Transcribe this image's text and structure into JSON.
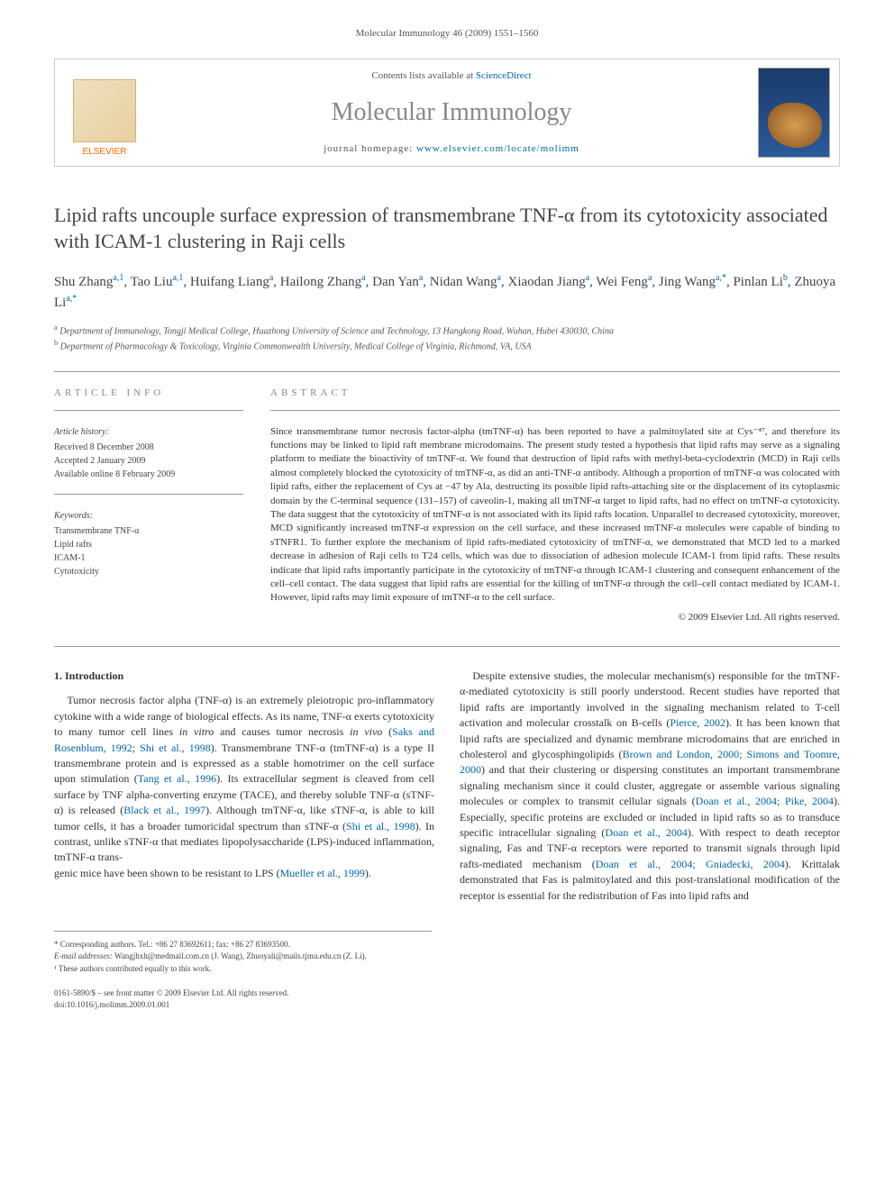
{
  "running_header": "Molecular Immunology 46 (2009) 1551–1560",
  "banner": {
    "publisher": "ELSEVIER",
    "contents_prefix": "Contents lists available at ",
    "contents_link": "ScienceDirect",
    "journal_name": "Molecular Immunology",
    "homepage_prefix": "journal homepage: ",
    "homepage_url": "www.elsevier.com/locate/molimm"
  },
  "title": "Lipid rafts uncouple surface expression of transmembrane TNF-α from its cytotoxicity associated with ICAM-1 clustering in Raji cells",
  "authors_html": "Shu Zhang<sup>a,1</sup>, Tao Liu<sup>a,1</sup>, Huifang Liang<sup>a</sup>, Hailong Zhang<sup>a</sup>, Dan Yan<sup>a</sup>, Nidan Wang<sup>a</sup>, Xiaodan Jiang<sup>a</sup>, Wei Feng<sup>a</sup>, Jing Wang<sup>a,*</sup>, Pinlan Li<sup>b</sup>, Zhuoya Li<sup>a,*</sup>",
  "affiliations": [
    {
      "sup": "a",
      "text": "Department of Immunology, Tongji Medical College, Huazhong University of Science and Technology, 13 Hangkong Road, Wuhan, Hubei 430030, China"
    },
    {
      "sup": "b",
      "text": "Department of Pharmacology & Toxicology, Virginia Commonwealth University, Medical College of Virginia, Richmond, VA, USA"
    }
  ],
  "article_info": {
    "heading": "ARTICLE INFO",
    "history_label": "Article history:",
    "history": [
      "Received 8 December 2008",
      "Accepted 2 January 2009",
      "Available online 8 February 2009"
    ],
    "keywords_label": "Keywords:",
    "keywords": [
      "Transmembrane TNF-α",
      "Lipid rafts",
      "ICAM-1",
      "Cytotoxicity"
    ]
  },
  "abstract": {
    "heading": "ABSTRACT",
    "text": "Since transmembrane tumor necrosis factor-alpha (tmTNF-α) has been reported to have a palmitoylated site at Cys⁻⁴⁷, and therefore its functions may be linked to lipid raft membrane microdomains. The present study tested a hypothesis that lipid rafts may serve as a signaling platform to mediate the bioactivity of tmTNF-α. We found that destruction of lipid rafts with methyl-beta-cyclodextrin (MCD) in Raji cells almost completely blocked the cytotoxicity of tmTNF-α, as did an anti-TNF-α antibody. Although a proportion of tmTNF-α was colocated with lipid rafts, either the replacement of Cys at −47 by Ala, destructing its possible lipid rafts-attaching site or the displacement of its cytoplasmic domain by the C-terminal sequence (131–157) of caveolin-1, making all tmTNF-α target to lipid rafts, had no effect on tmTNF-α cytotoxicity. The data suggest that the cytotoxicity of tmTNF-α is not associated with its lipid rafts location. Unparallel to decreased cytotoxicity, moreover, MCD significantly increased tmTNF-α expression on the cell surface, and these increased tmTNF-α molecules were capable of binding to sTNFR1. To further explore the mechanism of lipid rafts-mediated cytotoxicity of tmTNF-α, we demonstrated that MCD led to a marked decrease in adhesion of Raji cells to T24 cells, which was due to dissociation of adhesion molecule ICAM-1 from lipid rafts. These results indicate that lipid rafts importantly participate in the cytotoxicity of tmTNF-α through ICAM-1 clustering and consequent enhancement of the cell–cell contact. The data suggest that lipid rafts are essential for the killing of tmTNF-α through the cell–cell contact mediated by ICAM-1. However, lipid rafts may limit exposure of tmTNF-α to the cell surface.",
    "copyright": "© 2009 Elsevier Ltd. All rights reserved."
  },
  "body": {
    "section_heading": "1. Introduction",
    "para1_html": "Tumor necrosis factor alpha (TNF-α) is an extremely pleiotropic pro-inflammatory cytokine with a wide range of biological effects. As its name, TNF-α exerts cytotoxicity to many tumor cell lines <i>in vitro</i> and causes tumor necrosis <i>in vivo</i> (<span class='cite'>Saks and Rosenblum, 1992; Shi et al., 1998</span>). Transmembrane TNF-α (tmTNF-α) is a type II transmembrane protein and is expressed as a stable homotrimer on the cell surface upon stimulation (<span class='cite'>Tang et al., 1996</span>). Its extracellular segment is cleaved from cell surface by TNF alpha-converting enzyme (TACE), and thereby soluble TNF-α (sTNF-α) is released (<span class='cite'>Black et al., 1997</span>). Although tmTNF-α, like sTNF-α, is able to kill tumor cells, it has a broader tumoricidal spectrum than sTNF-α (<span class='cite'>Shi et al., 1998</span>). In contrast, unlike sTNF-α that mediates lipopolysaccharide (LPS)-induced inflammation, tmTNF-α trans-",
    "para2_html": "genic mice have been shown to be resistant to LPS (<span class='cite'>Mueller et al., 1999</span>).",
    "para3_html": "Despite extensive studies, the molecular mechanism(s) responsible for the tmTNF-α-mediated cytotoxicity is still poorly understood. Recent studies have reported that lipid rafts are importantly involved in the signaling mechanism related to T-cell activation and molecular crosstalk on B-cells (<span class='cite'>Pierce, 2002</span>). It has been known that lipid rafts are specialized and dynamic membrane microdomains that are enriched in cholesterol and glycosphingolipids (<span class='cite'>Brown and London, 2000; Simons and Toomre, 2000</span>) and that their clustering or dispersing constitutes an important transmembrane signaling mechanism since it could cluster, aggregate or assemble various signaling molecules or complex to transmit cellular signals (<span class='cite'>Doan et al., 2004; Pike, 2004</span>). Especially, specific proteins are excluded or included in lipid rafts so as to transduce specific intracellular signaling (<span class='cite'>Doan et al., 2004</span>). With respect to death receptor signaling, Fas and TNF-α receptors were reported to transmit signals through lipid rafts-mediated mechanism (<span class='cite'>Doan et al., 2004; Gniadecki, 2004</span>). Krittalak demonstrated that Fas is palmitoylated and this post-translational modification of the receptor is essential for the redistribution of Fas into lipid rafts and"
  },
  "footnotes": {
    "corresponding": "* Corresponding authors. Tel.: +86 27 83692611; fax: +86 27 83693500.",
    "emails_label": "E-mail addresses:",
    "emails": "Wangjhxh@medmail.com.cn (J. Wang), Zhuoyali@mails.tjmu.edu.cn (Z. Li).",
    "equal": "¹ These authors contributed equally to this work."
  },
  "footer_copyright": {
    "line1": "0161-5890/$ – see front matter © 2009 Elsevier Ltd. All rights reserved.",
    "line2": "doi:10.1016/j.molimm.2009.01.001"
  }
}
